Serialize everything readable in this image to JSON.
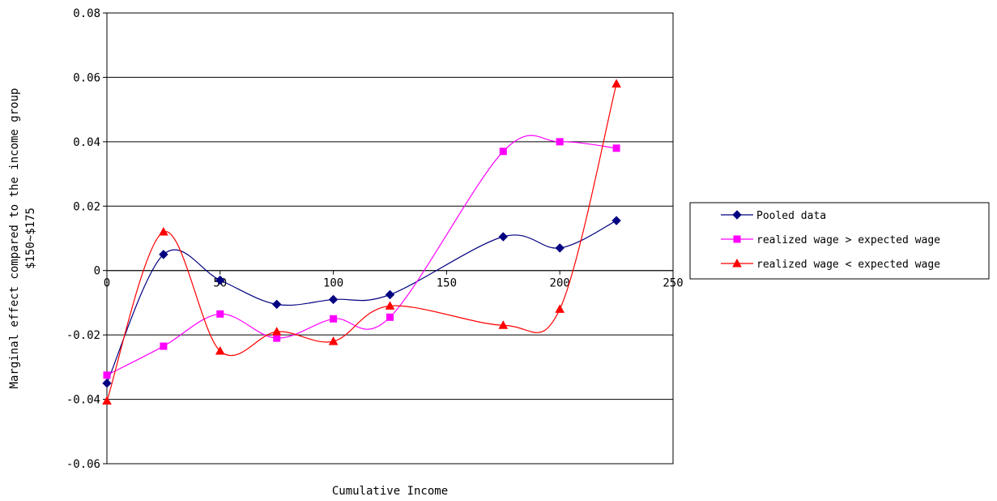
{
  "chart_data": {
    "type": "line",
    "title": "",
    "xlabel": "Cumulative Income",
    "ylabel_lines": [
      "Marginal effect compared to the income group",
      "$150~$175"
    ],
    "xlim": [
      0,
      250
    ],
    "ylim": [
      -0.06,
      0.08
    ],
    "xticks": [
      0,
      50,
      100,
      150,
      200,
      250
    ],
    "yticks": [
      -0.06,
      -0.04,
      -0.02,
      0,
      0.02,
      0.04,
      0.06,
      0.08
    ],
    "ytick_labels": [
      "-0.06",
      "-0.04",
      "-0.02",
      "0",
      "0.02",
      "0.04",
      "0.06",
      "0.08"
    ],
    "xtick_labels": [
      "0",
      "50",
      "100",
      "150",
      "200",
      "250"
    ],
    "grid": "horizontal",
    "smooth": true,
    "legend_position": "right",
    "series": [
      {
        "name": "Pooled data",
        "color": "#000080",
        "marker": "diamond",
        "points": [
          [
            0,
            -0.035
          ],
          [
            25,
            0.005
          ],
          [
            50,
            -0.003
          ],
          [
            75,
            -0.0105
          ],
          [
            100,
            -0.009
          ],
          [
            125,
            -0.0075
          ],
          [
            175,
            0.0105
          ],
          [
            200,
            0.007
          ],
          [
            225,
            0.0155
          ]
        ]
      },
      {
        "name": "realized wage > expected wage",
        "color": "#ff00ff",
        "marker": "square",
        "points": [
          [
            0,
            -0.0325
          ],
          [
            25,
            -0.0235
          ],
          [
            50,
            -0.0135
          ],
          [
            75,
            -0.021
          ],
          [
            100,
            -0.015
          ],
          [
            125,
            -0.0145
          ],
          [
            175,
            0.037
          ],
          [
            200,
            0.04
          ],
          [
            225,
            0.038
          ]
        ]
      },
      {
        "name": "realized wage < expected wage",
        "color": "#ff0000",
        "marker": "triangle",
        "points": [
          [
            0,
            -0.0405
          ],
          [
            25,
            0.012
          ],
          [
            50,
            -0.025
          ],
          [
            75,
            -0.019
          ],
          [
            100,
            -0.022
          ],
          [
            125,
            -0.011
          ],
          [
            175,
            -0.017
          ],
          [
            200,
            -0.012
          ],
          [
            225,
            0.058
          ]
        ]
      }
    ]
  }
}
